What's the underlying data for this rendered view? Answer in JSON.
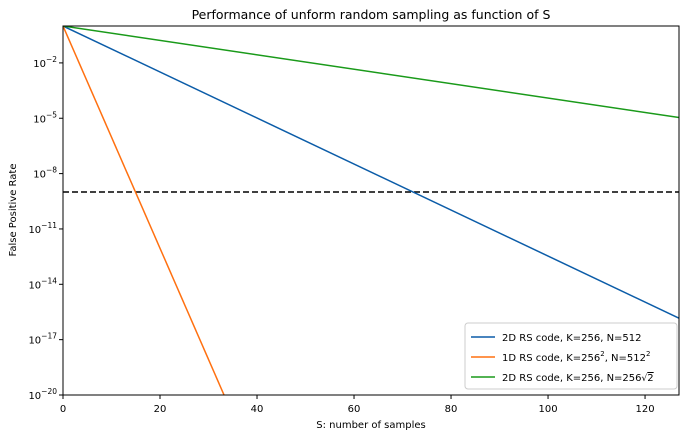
{
  "chart_data": {
    "type": "line",
    "title": "Performance of unform random sampling as function of S",
    "xlabel": "S: number of samples",
    "ylabel": "False Positive Rate",
    "xlim": [
      0,
      127
    ],
    "ylim": [
      1e-20,
      1
    ],
    "yscale": "log",
    "grid": false,
    "legend_placement": "lower right",
    "xticks": [
      0,
      20,
      40,
      60,
      80,
      100,
      120
    ],
    "yticks_exp": [
      -2,
      -5,
      -8,
      -11,
      -14,
      -17,
      -20
    ],
    "series": [
      {
        "name": "2D RS code, K=256, N=512",
        "legend": {
          "pre": "2D RS code, K=256, N=512"
        },
        "color": "#0b5ca8",
        "x": [
          0,
          127
        ],
        "y": [
          1,
          1.46e-16
        ]
      },
      {
        "name": "1D RS code, K=256^2, N=512^2",
        "legend": {
          "pre": "1D RS code, K=256",
          "sup1": "2",
          "mid": ", N=512",
          "sup2": "2"
        },
        "color": "#ff7010",
        "x": [
          0,
          33.2
        ],
        "y": [
          1,
          1e-20
        ]
      },
      {
        "name": "2D RS code, K=256, N=256√2",
        "legend": {
          "pre": "2D RS code, K=256, N=256",
          "sqrt": "√",
          "rad": "2"
        },
        "color": "#1a9a1a",
        "x": [
          0,
          127
        ],
        "y": [
          1,
          1.1e-05
        ]
      }
    ],
    "hlines": [
      {
        "y": 1e-09,
        "style": "dashed",
        "color": "#000000"
      }
    ]
  }
}
